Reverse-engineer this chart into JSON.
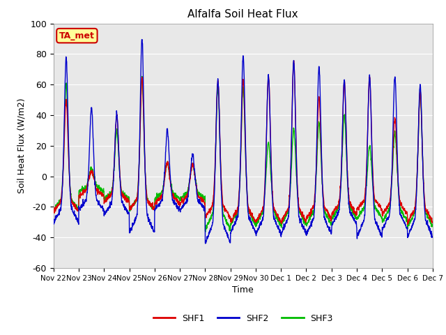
{
  "title": "Alfalfa Soil Heat Flux",
  "ylabel": "Soil Heat Flux (W/m2)",
  "xlabel": "Time",
  "ylim": [
    -60,
    100
  ],
  "yticks": [
    -60,
    -40,
    -20,
    0,
    20,
    40,
    60,
    80,
    100
  ],
  "background_color": "#e8e8e8",
  "annotation_text": "TA_met",
  "annotation_box_color": "#ffff99",
  "annotation_border_color": "#cc0000",
  "line_colors": {
    "SHF1": "#dd0000",
    "SHF2": "#0000cc",
    "SHF3": "#00bb00"
  },
  "line_width": 1.0,
  "x_tick_labels": [
    "Nov 22",
    "Nov 23",
    "Nov 24",
    "Nov 25",
    "Nov 26",
    "Nov 27",
    "Nov 28",
    "Nov 29",
    "Nov 30",
    "Dec 1",
    "Dec 2",
    "Dec 3",
    "Dec 4",
    "Dec 5",
    "Dec 6",
    "Dec 7"
  ],
  "n_days": 15,
  "samples_per_day": 144,
  "legend_entries": [
    "SHF1",
    "SHF2",
    "SHF3"
  ],
  "day_peaks_shf1": [
    50,
    3,
    40,
    65,
    9,
    8,
    62,
    63,
    65,
    75,
    52,
    62,
    64,
    38,
    55
  ],
  "day_peaks_shf2": [
    78,
    45,
    41,
    90,
    30,
    14,
    63,
    78,
    65,
    75,
    72,
    63,
    65,
    65,
    60
  ],
  "day_peaks_shf3": [
    60,
    5,
    30,
    65,
    9,
    8,
    58,
    58,
    22,
    31,
    35,
    40,
    20,
    28,
    55
  ],
  "night_shf1": [
    -23,
    -13,
    -17,
    -22,
    -18,
    -18,
    -27,
    -30,
    -30,
    -30,
    -28,
    -25,
    -22,
    -25,
    -30
  ],
  "night_shf2": [
    -30,
    -22,
    -25,
    -37,
    -22,
    -22,
    -44,
    -37,
    -38,
    -38,
    -38,
    -32,
    -40,
    -35,
    -40
  ],
  "night_shf3": [
    -22,
    -10,
    -15,
    -22,
    -15,
    -15,
    -35,
    -32,
    -32,
    -32,
    -32,
    -28,
    -28,
    -30,
    -33
  ]
}
